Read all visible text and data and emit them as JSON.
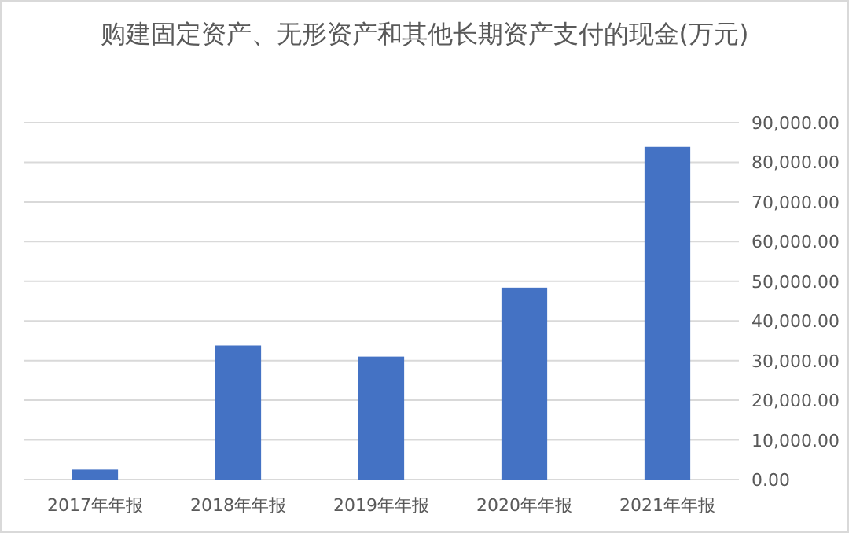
{
  "chart_data": {
    "type": "bar",
    "title": "购建固定资产、无形资产和其他长期资产支付的现金(万元)",
    "categories": [
      "2017年年报",
      "2018年年报",
      "2019年年报",
      "2020年年报",
      "2021年年报"
    ],
    "values": [
      2500,
      33800,
      31000,
      48400,
      83900
    ],
    "color": "#4472c4",
    "ylim": [
      0,
      90000
    ],
    "yticks": [
      {
        "value": 0,
        "label": "0.00"
      },
      {
        "value": 10000,
        "label": "10,000.00"
      },
      {
        "value": 20000,
        "label": "20,000.00"
      },
      {
        "value": 30000,
        "label": "30,000.00"
      },
      {
        "value": 40000,
        "label": "40,000.00"
      },
      {
        "value": 50000,
        "label": "50,000.00"
      },
      {
        "value": 60000,
        "label": "60,000.00"
      },
      {
        "value": 70000,
        "label": "70,000.00"
      },
      {
        "value": 80000,
        "label": "80,000.00"
      },
      {
        "value": 90000,
        "label": "90,000.00"
      }
    ],
    "grid": "y"
  }
}
